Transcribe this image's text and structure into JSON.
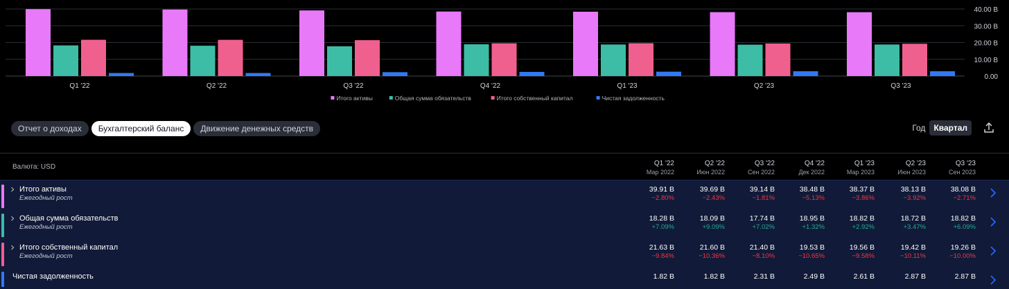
{
  "chart_data": {
    "type": "bar",
    "categories": [
      "Q1 '22",
      "Q2 '22",
      "Q3 '22",
      "Q4 '22",
      "Q1 '23",
      "Q2 '23",
      "Q3 '23"
    ],
    "series": [
      {
        "name": "Итого активы",
        "color": "#e879f9",
        "values": [
          39.91,
          39.69,
          39.14,
          38.48,
          38.37,
          38.13,
          38.08
        ]
      },
      {
        "name": "Общая сумма обязательств",
        "color": "#3dbda6",
        "values": [
          18.28,
          18.09,
          17.74,
          18.95,
          18.82,
          18.72,
          18.82
        ]
      },
      {
        "name": "Итого собственный капитал",
        "color": "#f0608e",
        "values": [
          21.63,
          21.6,
          21.4,
          19.53,
          19.56,
          19.42,
          19.26
        ]
      },
      {
        "name": "Чистая задолженность",
        "color": "#3179f5",
        "values": [
          1.82,
          1.82,
          2.31,
          2.49,
          2.61,
          2.87,
          2.87
        ]
      }
    ],
    "yticks": [
      "40.00 B",
      "30.00 B",
      "20.00 B",
      "10.00 B",
      "0.00"
    ],
    "ylim": [
      0,
      40
    ],
    "grid": true,
    "legend_position": "bottom"
  },
  "tabs": [
    {
      "label": "Отчет о доходах",
      "active": false
    },
    {
      "label": "Бухгалтерский баланс",
      "active": true
    },
    {
      "label": "Движение денежных средств",
      "active": false
    }
  ],
  "period": {
    "year_label": "Год",
    "quarter_label": "Квартал",
    "export_icon": "export-icon"
  },
  "table": {
    "currency_label": "Валюта: USD",
    "columns": [
      {
        "q": "Q1 '22",
        "m": "Мар 2022"
      },
      {
        "q": "Q2 '22",
        "m": "Июн 2022"
      },
      {
        "q": "Q3 '22",
        "m": "Сен 2022"
      },
      {
        "q": "Q4 '22",
        "m": "Дек 2022"
      },
      {
        "q": "Q1 '23",
        "m": "Мар 2023"
      },
      {
        "q": "Q2 '23",
        "m": "Июн 2023"
      },
      {
        "q": "Q3 '23",
        "m": "Сен 2023"
      }
    ],
    "rows": [
      {
        "label": "Итого активы",
        "sub": "Ежегодный рост",
        "color": "#e879f9",
        "expandable": true,
        "values": [
          "39.91 B",
          "39.69 B",
          "39.14 B",
          "38.48 B",
          "38.37 B",
          "38.13 B",
          "38.08 B"
        ],
        "growth": [
          "−2.80%",
          "−2.43%",
          "−1.81%",
          "−5.13%",
          "−3.86%",
          "−3.92%",
          "−2.71%"
        ]
      },
      {
        "label": "Общая сумма обязательств",
        "sub": "Ежегодный рост",
        "color": "#3dbda6",
        "expandable": true,
        "values": [
          "18.28 B",
          "18.09 B",
          "17.74 B",
          "18.95 B",
          "18.82 B",
          "18.72 B",
          "18.82 B"
        ],
        "growth": [
          "+7.09%",
          "+9.09%",
          "+7.02%",
          "+1.32%",
          "+2.92%",
          "+3.47%",
          "+6.09%"
        ]
      },
      {
        "label": "Итого собственный капитал",
        "sub": "Ежегодный рост",
        "color": "#f0608e",
        "expandable": true,
        "values": [
          "21.63 B",
          "21.60 B",
          "21.40 B",
          "19.53 B",
          "19.56 B",
          "19.42 B",
          "19.26 B"
        ],
        "growth": [
          "−9.84%",
          "−10.36%",
          "−8.10%",
          "−10.65%",
          "−9.58%",
          "−10.11%",
          "−10.00%"
        ]
      },
      {
        "label": "Чистая задолженность",
        "sub": "",
        "color": "#3179f5",
        "expandable": false,
        "values": [
          "1.82 B",
          "1.82 B",
          "2.31 B",
          "2.49 B",
          "2.61 B",
          "2.87 B",
          "2.87 B"
        ],
        "growth": []
      }
    ]
  }
}
